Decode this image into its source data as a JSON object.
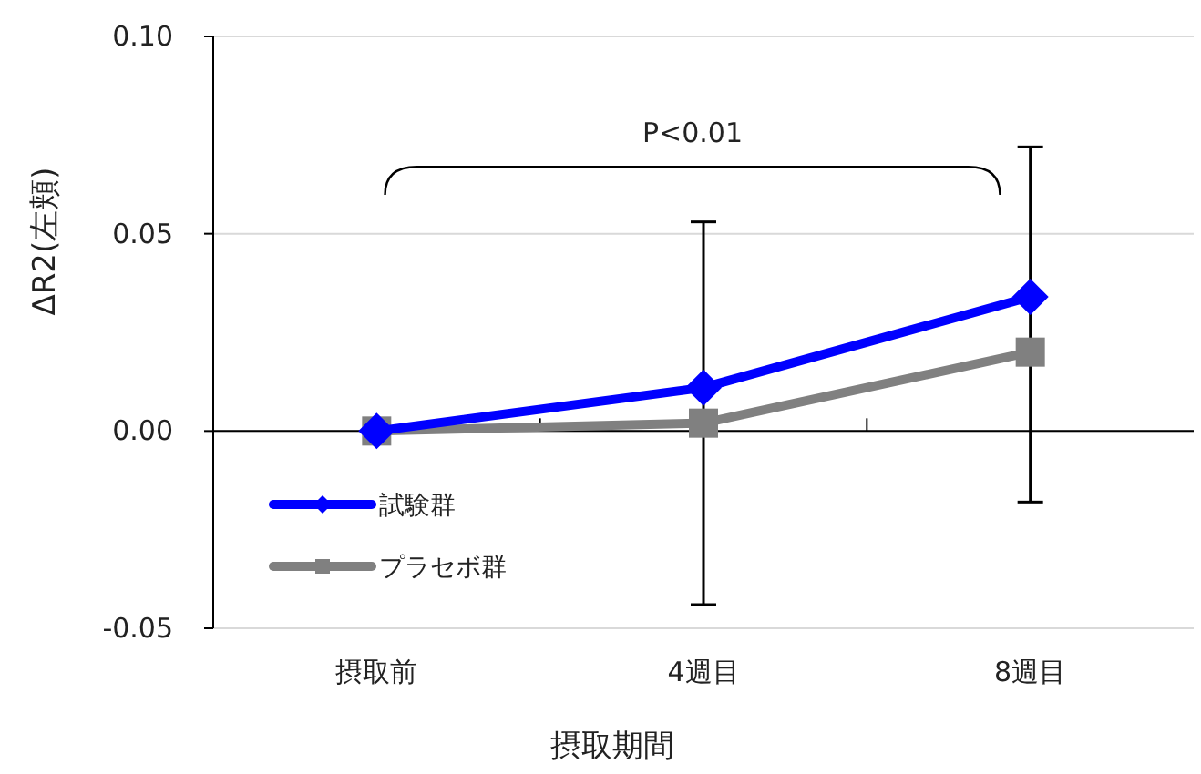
{
  "chart_data": {
    "type": "line",
    "ylabel": "ΔR2(左頬)",
    "xlabel": "摂取期間",
    "categories": [
      "摂取前",
      "4週目",
      "8週目"
    ],
    "series": [
      {
        "name": "試験群",
        "color": "#0000ff",
        "marker": "diamond",
        "values": [
          0,
          0.011,
          0.034
        ],
        "errors": [
          null,
          [
            -0.044,
            0.053
          ],
          [
            -0.018,
            0.072
          ]
        ]
      },
      {
        "name": "プラセボ群",
        "color": "#808080",
        "marker": "square",
        "values": [
          0,
          0.002,
          0.02
        ]
      }
    ],
    "ylim": [
      -0.05,
      0.1
    ],
    "yticks": [
      {
        "value": -0.05,
        "label": "-0.05"
      },
      {
        "value": 0,
        "label": "0.00"
      },
      {
        "value": 0.05,
        "label": "0.05"
      },
      {
        "value": 0.1,
        "label": "0.10"
      }
    ],
    "grid": "y",
    "legend": "bottom left",
    "line_style": "solid",
    "annotations": [
      "P<0.01"
    ]
  }
}
